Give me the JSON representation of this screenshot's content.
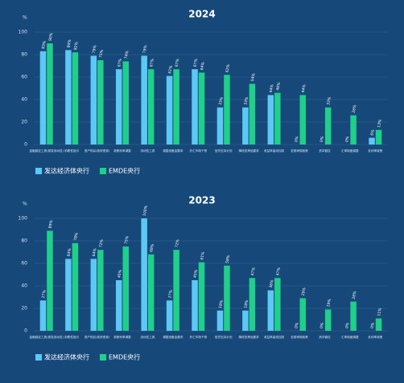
{
  "chart_data": [
    {
      "type": "bar",
      "title": "2024",
      "y_label": "%",
      "categories": [
        "金融稳定工具(紧急流动性)",
        "前瞻性指引",
        "资产购买(政府债券)",
        "政策利率调整",
        "流动性工具",
        "调整准备金要求",
        "外汇市场干预",
        "信贷支持计划",
        "降低抵押品要求",
        "收益率曲线控制",
        "宏观审慎政策",
        "资本管控",
        "汇率制度调整",
        "负利率政策"
      ],
      "series": [
        {
          "name": "发达经济体央行",
          "color": "#5cc8f4",
          "values": [
            83,
            84,
            79,
            67,
            79,
            61,
            67,
            33,
            33,
            44,
            0,
            0,
            0,
            6
          ],
          "value_labels": [
            "83%",
            "84%",
            "79%",
            "67%",
            "79%",
            "61%",
            "67%",
            "33%",
            "33%",
            "44%",
            "0%",
            "0%",
            "0%",
            "6%"
          ]
        },
        {
          "name": "EMDE央行",
          "color": "#1fcf8a",
          "values": [
            90,
            82,
            75,
            74,
            67,
            67,
            64,
            62,
            54,
            46,
            44,
            33,
            26,
            13
          ],
          "value_labels": [
            "90%",
            "82%",
            "75%",
            "74%",
            "67%",
            "67%",
            "64%",
            "62%",
            "54%",
            "46%",
            "44%",
            "33%",
            "26%",
            "13%"
          ]
        }
      ],
      "ylim": [
        0,
        100
      ],
      "yticks": [
        0,
        20,
        40,
        60,
        80,
        100
      ]
    },
    {
      "type": "bar",
      "title": "2023",
      "y_label": "%",
      "categories": [
        "金融稳定工具(紧急流动性)",
        "前瞻性指引",
        "资产购买(政府债券)",
        "政策利率调整",
        "流动性工具",
        "调整准备金要求",
        "外汇市场干预",
        "信贷支持计划",
        "降低抵押品要求",
        "收益率曲线控制",
        "宏观审慎政策",
        "资本管控",
        "汇率制度调整",
        "负利率政策"
      ],
      "series": [
        {
          "name": "发达经济体央行",
          "color": "#5cc8f4",
          "values": [
            27,
            64,
            64,
            45,
            100,
            27,
            45,
            18,
            18,
            36,
            0,
            0,
            0,
            0
          ],
          "value_labels": [
            "27%",
            "64%",
            "64%",
            "45%",
            "100%",
            "27%",
            "45%",
            "18%",
            "18%",
            "36%",
            "0%",
            "0%",
            "0%",
            "0%"
          ]
        },
        {
          "name": "EMDE央行",
          "color": "#1fcf8a",
          "values": [
            89,
            78,
            72,
            75,
            68,
            72,
            61,
            58,
            47,
            47,
            29,
            19,
            26,
            11
          ],
          "value_labels": [
            "89%",
            "78%",
            "72%",
            "75%",
            "68%",
            "72%",
            "61%",
            "58%",
            "47%",
            "47%",
            "29%",
            "19%",
            "26%",
            "11%"
          ]
        }
      ],
      "ylim": [
        0,
        100
      ],
      "yticks": [
        0,
        20,
        40,
        60,
        80,
        100
      ]
    }
  ]
}
